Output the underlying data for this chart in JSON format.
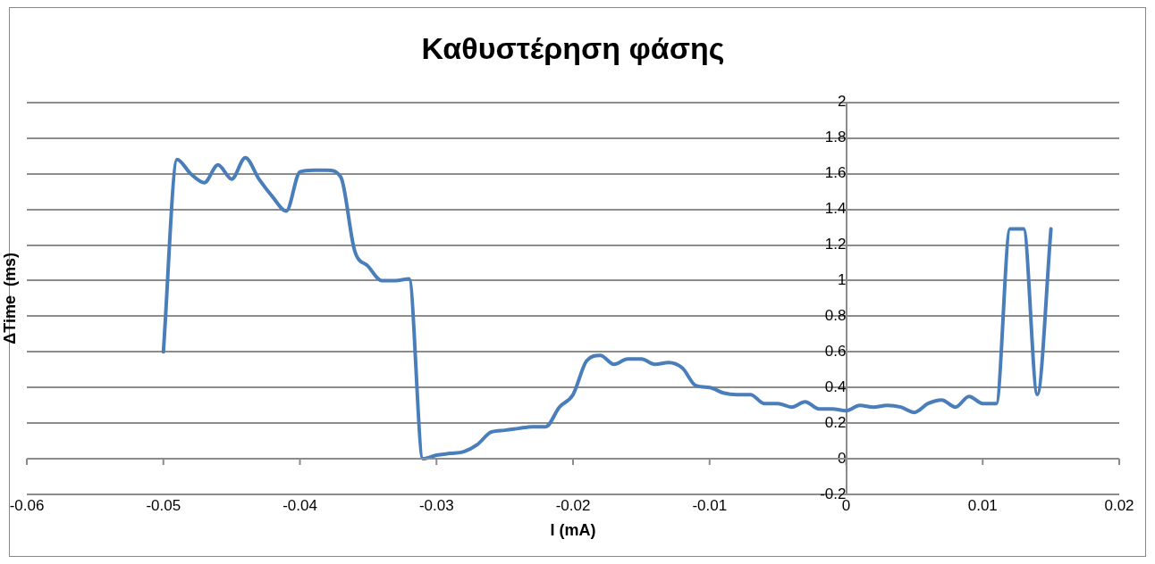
{
  "chart_data": {
    "type": "line",
    "title": "Καθυστέρηση φάσης",
    "xlabel": "I (mA)",
    "ylabel": "ΔTime  (ms)",
    "x": [
      -0.05,
      -0.049,
      -0.048,
      -0.047,
      -0.046,
      -0.045,
      -0.044,
      -0.043,
      -0.042,
      -0.041,
      -0.04,
      -0.039,
      -0.038,
      -0.037,
      -0.036,
      -0.035,
      -0.034,
      -0.033,
      -0.032,
      -0.031,
      -0.03,
      -0.029,
      -0.028,
      -0.027,
      -0.026,
      -0.025,
      -0.024,
      -0.023,
      -0.022,
      -0.021,
      -0.02,
      -0.019,
      -0.018,
      -0.017,
      -0.016,
      -0.015,
      -0.014,
      -0.013,
      -0.012,
      -0.011,
      -0.01,
      -0.009,
      -0.008,
      -0.007,
      -0.006,
      -0.005,
      -0.004,
      -0.003,
      -0.002,
      -0.001,
      0,
      0.001,
      0.002,
      0.003,
      0.004,
      0.005,
      0.006,
      0.007,
      0.008,
      0.009,
      0.01,
      0.011,
      0.012,
      0.013,
      0.014,
      0.015
    ],
    "series": [
      {
        "color": "#4a7ebb",
        "values": [
          0.6,
          1.68,
          1.6,
          1.55,
          1.65,
          1.57,
          1.69,
          1.57,
          1.47,
          1.39,
          1.61,
          1.62,
          1.62,
          1.58,
          1.17,
          1.08,
          1.0,
          1.0,
          1.01,
          0.0,
          0.02,
          0.03,
          0.04,
          0.08,
          0.15,
          0.16,
          0.17,
          0.18,
          0.18,
          0.29,
          0.36,
          0.55,
          0.58,
          0.53,
          0.56,
          0.56,
          0.53,
          0.54,
          0.51,
          0.41,
          0.4,
          0.37,
          0.36,
          0.36,
          0.31,
          0.31,
          0.29,
          0.32,
          0.28,
          0.28,
          0.27,
          0.3,
          0.29,
          0.3,
          0.29,
          0.26,
          0.31,
          0.33,
          0.29,
          0.35,
          0.31,
          0.31,
          1.29,
          1.29,
          0.36,
          1.29
        ]
      }
    ],
    "xlim": [
      -0.06,
      0.02
    ],
    "xticks": [
      -0.06,
      -0.05,
      -0.04,
      -0.03,
      -0.02,
      -0.01,
      0,
      0.01,
      0.02
    ],
    "ylim": [
      -0.2,
      2
    ],
    "yticks": [
      -0.2,
      0,
      0.2,
      0.4,
      0.6,
      0.8,
      1,
      1.2,
      1.4,
      1.6,
      1.8,
      2
    ],
    "grid": "y",
    "legend": false,
    "marker": "none",
    "line_style": "solid"
  }
}
